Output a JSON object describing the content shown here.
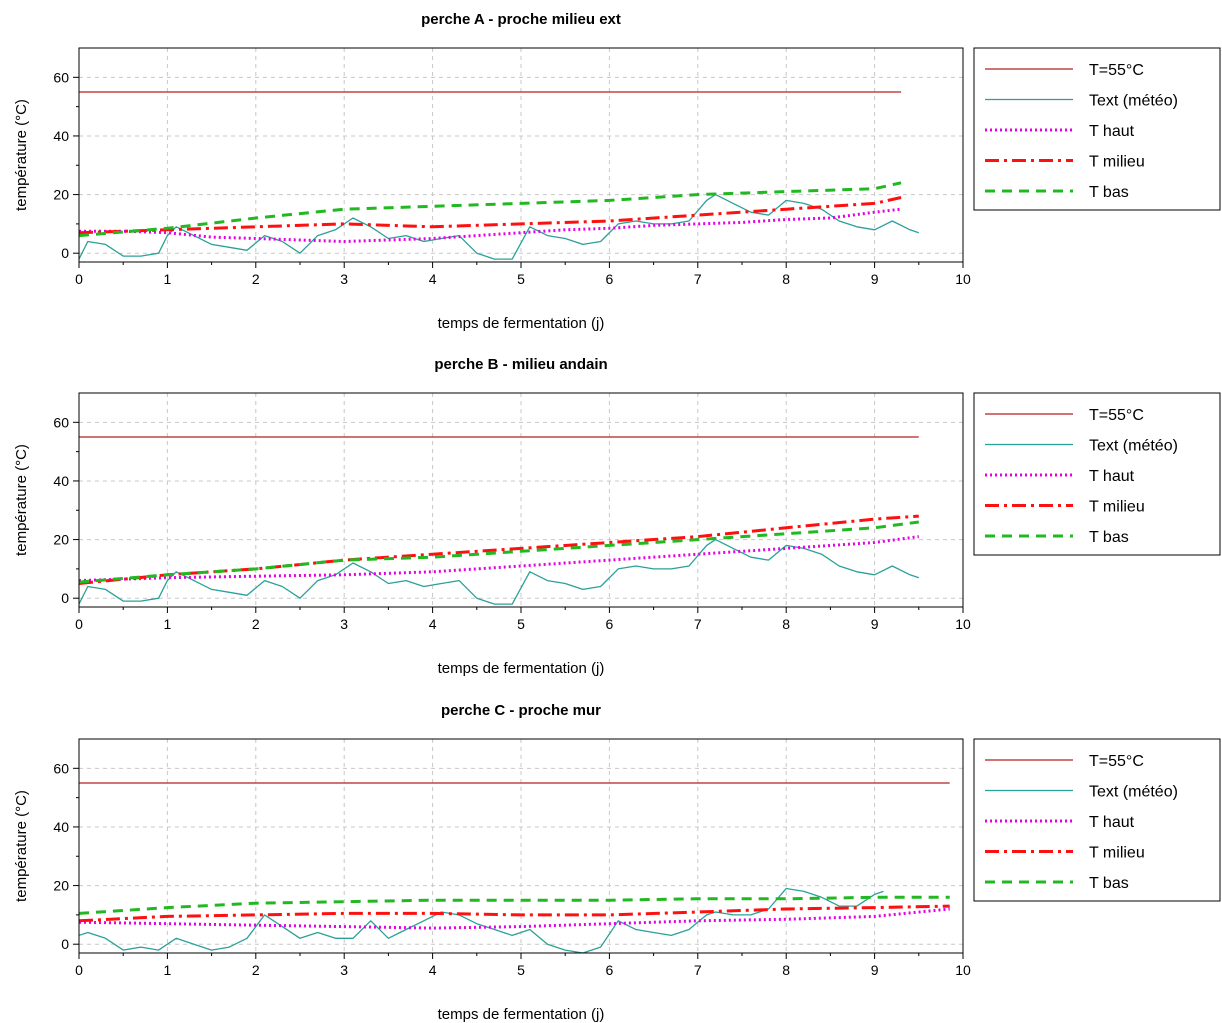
{
  "chart_data": [
    {
      "type": "line",
      "title": "perche A - proche milieu ext",
      "xlabel": "temps de fermentation (j)",
      "ylabel": "température (°C)",
      "xlim": [
        0,
        10
      ],
      "ylim": [
        -3,
        70
      ],
      "x_ticks": [
        0,
        1,
        2,
        3,
        4,
        5,
        6,
        7,
        8,
        9,
        10
      ],
      "y_ticks": [
        0,
        20,
        40,
        60
      ],
      "grid": true,
      "legend_position": "right",
      "series": [
        {
          "name": "T=55°C",
          "style": "solid",
          "color": "#b22222",
          "x": [
            0,
            9.3
          ],
          "y": [
            55,
            55
          ]
        },
        {
          "name": "Text (météo)",
          "style": "solid",
          "color": "#2aa198",
          "x": [
            0,
            0.1,
            0.3,
            0.5,
            0.7,
            0.9,
            1.0,
            1.1,
            1.3,
            1.5,
            1.7,
            1.9,
            2.1,
            2.3,
            2.5,
            2.7,
            2.9,
            3.1,
            3.3,
            3.5,
            3.7,
            3.9,
            4.1,
            4.3,
            4.5,
            4.7,
            4.9,
            5.1,
            5.3,
            5.5,
            5.7,
            5.9,
            6.1,
            6.3,
            6.5,
            6.7,
            6.9,
            7.1,
            7.2,
            7.4,
            7.6,
            7.8,
            8.0,
            8.2,
            8.4,
            8.6,
            8.8,
            9.0,
            9.2,
            9.4,
            9.5
          ],
          "y": [
            -2,
            4,
            3,
            -1,
            -1,
            0,
            6,
            9,
            6,
            3,
            2,
            1,
            6,
            4,
            0,
            6,
            8,
            12,
            9,
            5,
            6,
            4,
            5,
            6,
            0,
            -2,
            -2,
            9,
            6,
            5,
            3,
            4,
            10,
            11,
            10,
            10,
            11,
            18,
            20,
            17,
            14,
            13,
            18,
            17,
            15,
            11,
            9,
            8,
            11,
            8,
            7
          ]
        },
        {
          "name": "T haut",
          "style": "dotted",
          "color": "#e400e4",
          "x": [
            0,
            0.5,
            1.0,
            1.5,
            2.0,
            2.5,
            3.0,
            3.5,
            4.0,
            4.5,
            5.0,
            5.5,
            6.0,
            6.5,
            7.0,
            7.5,
            8.0,
            8.5,
            9.0,
            9.3
          ],
          "y": [
            7.5,
            7.5,
            7,
            5.5,
            5,
            4.5,
            4,
            4.5,
            5,
            6,
            7,
            8,
            8.5,
            9.5,
            10,
            10.5,
            11.5,
            12,
            14,
            15
          ]
        },
        {
          "name": "T milieu",
          "style": "dashdot",
          "color": "#ff1010",
          "x": [
            0,
            1,
            2,
            3,
            4,
            5,
            6,
            7,
            8,
            9,
            9.3
          ],
          "y": [
            7,
            8,
            9,
            10,
            9,
            10,
            11,
            13,
            15,
            17,
            19
          ]
        },
        {
          "name": "T bas",
          "style": "dashed",
          "color": "#22b822",
          "x": [
            0,
            1,
            2,
            3,
            4,
            5,
            6,
            7,
            8,
            9,
            9.3
          ],
          "y": [
            6,
            8.5,
            12,
            15,
            16,
            17,
            18,
            20,
            21,
            22,
            24
          ]
        }
      ]
    },
    {
      "type": "line",
      "title": "perche B - milieu andain",
      "xlabel": "temps de fermentation (j)",
      "ylabel": "température (°C)",
      "xlim": [
        0,
        10
      ],
      "ylim": [
        -3,
        70
      ],
      "x_ticks": [
        0,
        1,
        2,
        3,
        4,
        5,
        6,
        7,
        8,
        9,
        10
      ],
      "y_ticks": [
        0,
        20,
        40,
        60
      ],
      "grid": true,
      "legend_position": "right",
      "series": [
        {
          "name": "T=55°C",
          "style": "solid",
          "color": "#b22222",
          "x": [
            0,
            9.5
          ],
          "y": [
            55,
            55
          ]
        },
        {
          "name": "Text (météo)",
          "style": "solid",
          "color": "#2aa198",
          "x": [
            0,
            0.1,
            0.3,
            0.5,
            0.7,
            0.9,
            1.0,
            1.1,
            1.3,
            1.5,
            1.7,
            1.9,
            2.1,
            2.3,
            2.5,
            2.7,
            2.9,
            3.1,
            3.3,
            3.5,
            3.7,
            3.9,
            4.1,
            4.3,
            4.5,
            4.7,
            4.9,
            5.1,
            5.3,
            5.5,
            5.7,
            5.9,
            6.1,
            6.3,
            6.5,
            6.7,
            6.9,
            7.1,
            7.2,
            7.4,
            7.6,
            7.8,
            8.0,
            8.2,
            8.4,
            8.6,
            8.8,
            9.0,
            9.2,
            9.4,
            9.5
          ],
          "y": [
            -2,
            4,
            3,
            -1,
            -1,
            0,
            6,
            9,
            6,
            3,
            2,
            1,
            6,
            4,
            0,
            6,
            8,
            12,
            9,
            5,
            6,
            4,
            5,
            6,
            0,
            -2,
            -2,
            9,
            6,
            5,
            3,
            4,
            10,
            11,
            10,
            10,
            11,
            18,
            20,
            17,
            14,
            13,
            18,
            17,
            15,
            11,
            9,
            8,
            11,
            8,
            7
          ]
        },
        {
          "name": "T haut",
          "style": "dotted",
          "color": "#e400e4",
          "x": [
            0,
            1,
            2,
            3,
            4,
            5,
            6,
            7,
            8,
            9,
            9.5
          ],
          "y": [
            6,
            7,
            7.5,
            8,
            9,
            11,
            13,
            15,
            17,
            19,
            21
          ]
        },
        {
          "name": "T milieu",
          "style": "dashdot",
          "color": "#ff1010",
          "x": [
            0,
            1,
            2,
            3,
            4,
            5,
            6,
            7,
            8,
            9,
            9.5
          ],
          "y": [
            5,
            8,
            10,
            13,
            15,
            17,
            19,
            21,
            24,
            27,
            28
          ]
        },
        {
          "name": "T bas",
          "style": "dashed",
          "color": "#22b822",
          "x": [
            0,
            1,
            2,
            3,
            4,
            5,
            6,
            7,
            8,
            9,
            9.5
          ],
          "y": [
            5.5,
            8,
            10,
            13,
            14,
            16,
            18,
            20,
            22,
            24,
            26
          ]
        }
      ]
    },
    {
      "type": "line",
      "title": "perche C - proche mur",
      "xlabel": "temps de fermentation (j)",
      "ylabel": "température (°C)",
      "xlim": [
        0,
        10
      ],
      "ylim": [
        -3,
        70
      ],
      "x_ticks": [
        0,
        1,
        2,
        3,
        4,
        5,
        6,
        7,
        8,
        9,
        10
      ],
      "y_ticks": [
        0,
        20,
        40,
        60
      ],
      "grid": true,
      "legend_position": "right",
      "series": [
        {
          "name": "T=55°C",
          "style": "solid",
          "color": "#b22222",
          "x": [
            0,
            9.85
          ],
          "y": [
            55,
            55
          ]
        },
        {
          "name": "Text (météo)",
          "style": "solid",
          "color": "#2aa198",
          "x": [
            0,
            0.1,
            0.3,
            0.5,
            0.7,
            0.9,
            1.0,
            1.1,
            1.3,
            1.5,
            1.7,
            1.9,
            2.1,
            2.3,
            2.5,
            2.7,
            2.9,
            3.1,
            3.3,
            3.5,
            3.7,
            3.9,
            4.1,
            4.3,
            4.5,
            4.7,
            4.9,
            5.1,
            5.3,
            5.5,
            5.7,
            5.9,
            6.1,
            6.3,
            6.5,
            6.7,
            6.9,
            7.1,
            7.2,
            7.4,
            7.6,
            7.8,
            8.0,
            8.2,
            8.4,
            8.6,
            8.8,
            9.0,
            9.1
          ],
          "y": [
            3,
            4,
            2,
            -2,
            -1,
            -2,
            0,
            2,
            0,
            -2,
            -1,
            2,
            10,
            6,
            2,
            4,
            2,
            2,
            8,
            2,
            5,
            8,
            11,
            10,
            7,
            5,
            3,
            5,
            0,
            -2,
            -3,
            -1,
            8,
            5,
            4,
            3,
            5,
            10,
            11,
            10,
            10,
            12,
            19,
            18,
            16,
            13,
            13,
            17,
            18
          ]
        },
        {
          "name": "T haut",
          "style": "dotted",
          "color": "#e400e4",
          "x": [
            0,
            1,
            2,
            3,
            4,
            5,
            6,
            7,
            8,
            9,
            9.85
          ],
          "y": [
            7.5,
            7,
            6.5,
            6,
            5.5,
            6,
            7,
            8,
            8.5,
            9.5,
            12
          ]
        },
        {
          "name": "T milieu",
          "style": "dashdot",
          "color": "#ff1010",
          "x": [
            0,
            1,
            2,
            3,
            4,
            5,
            6,
            7,
            8,
            9,
            9.85
          ],
          "y": [
            8,
            9.5,
            10,
            10.5,
            10.5,
            10,
            10,
            11,
            12,
            12.5,
            13
          ]
        },
        {
          "name": "T bas",
          "style": "dashed",
          "color": "#22b822",
          "x": [
            0,
            1,
            2,
            3,
            4,
            5,
            6,
            7,
            8,
            9,
            9.85
          ],
          "y": [
            10.5,
            12.5,
            14,
            14.5,
            15,
            15,
            15,
            15.5,
            15.5,
            16,
            16
          ]
        }
      ]
    }
  ]
}
